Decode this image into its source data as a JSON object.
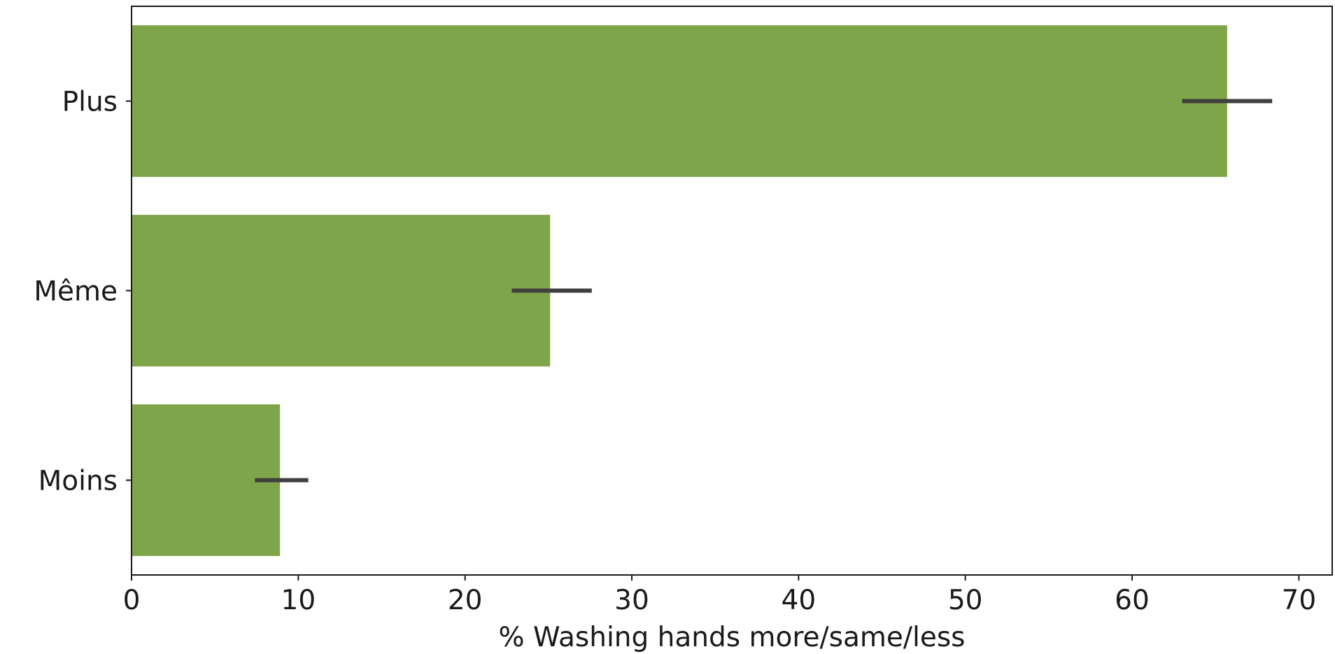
{
  "chart_data": {
    "type": "bar",
    "orientation": "horizontal",
    "categories": [
      "Plus",
      "Même",
      "Moins"
    ],
    "values": [
      65.7,
      25.1,
      8.9
    ],
    "error_bars": [
      {
        "low": 63.0,
        "high": 68.4
      },
      {
        "low": 22.8,
        "high": 27.6
      },
      {
        "low": 7.4,
        "high": 10.6
      }
    ],
    "xlabel": "% Washing hands more/same/less",
    "ylabel": "",
    "xlim": [
      0,
      72
    ],
    "xticks": [
      0,
      10,
      20,
      30,
      40,
      50,
      60,
      70
    ],
    "grid": false,
    "colors": {
      "bar": "#7fa54a",
      "error_bar": "#404040",
      "axis": "#1a1a1a"
    }
  }
}
